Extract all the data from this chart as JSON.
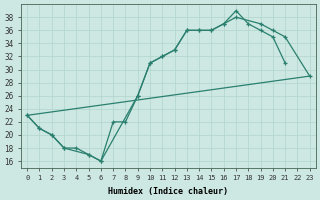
{
  "line1_x": [
    0,
    1,
    2,
    3,
    4,
    5,
    6,
    7,
    8,
    9,
    10,
    11,
    12,
    13,
    14,
    15,
    16,
    17,
    18,
    19,
    20,
    21
  ],
  "line1_y": [
    23,
    21,
    20,
    18,
    18,
    17,
    16,
    22,
    22,
    26,
    31,
    32,
    33,
    36,
    36,
    36,
    37,
    39,
    37,
    36,
    35,
    31
  ],
  "line2_x": [
    0,
    1,
    2,
    3,
    5,
    6,
    9,
    10,
    11,
    12,
    13,
    14,
    15,
    16,
    17,
    19,
    20,
    21,
    23
  ],
  "line2_y": [
    23,
    21,
    20,
    18,
    17,
    16,
    26,
    31,
    32,
    33,
    36,
    36,
    36,
    37,
    38,
    37,
    36,
    35,
    29
  ],
  "line3_x": [
    0,
    23
  ],
  "line3_y": [
    23,
    29
  ],
  "color": "#2a7f6f",
  "bg_color": "#cde8e2",
  "grid_color": "#b0d5cc",
  "xlabel": "Humidex (Indice chaleur)",
  "xlim": [
    -0.5,
    23.5
  ],
  "ylim": [
    15,
    40
  ],
  "yticks": [
    16,
    18,
    20,
    22,
    24,
    26,
    28,
    30,
    32,
    34,
    36,
    38
  ],
  "xticks": [
    0,
    1,
    2,
    3,
    4,
    5,
    6,
    7,
    8,
    9,
    10,
    11,
    12,
    13,
    14,
    15,
    16,
    17,
    18,
    19,
    20,
    21,
    22,
    23
  ]
}
